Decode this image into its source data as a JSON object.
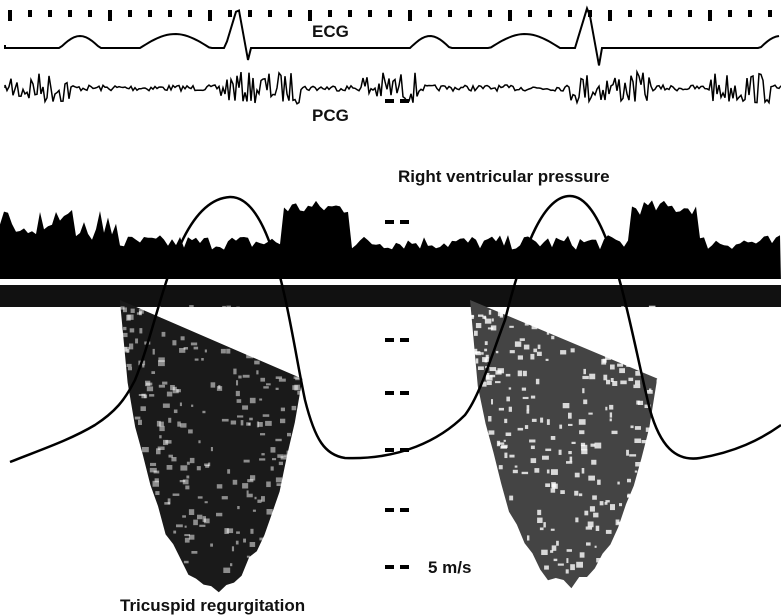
{
  "labels": {
    "ecg": "ECG",
    "pcg": "PCG",
    "rv_pressure": "Right ventricular pressure",
    "scale": "5 m/s",
    "caption": "Tricuspid regurgitation"
  }
}
